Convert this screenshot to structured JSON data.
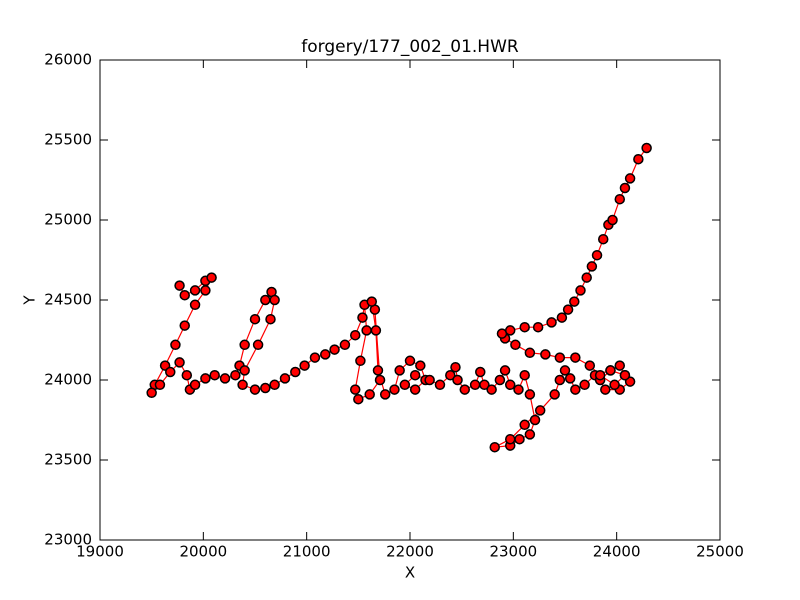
{
  "chart_data": {
    "type": "line",
    "title": "forgery/177_002_01.HWR",
    "x_label": "X",
    "y_label": "Y",
    "xlim": [
      19000,
      25000
    ],
    "xticks": [
      19000,
      20000,
      21000,
      22000,
      23000,
      24000,
      25000
    ],
    "ylim": [
      23000,
      26000
    ],
    "yticks": [
      23000,
      23500,
      24000,
      24500,
      25000,
      25500,
      26000
    ],
    "marker_edge_color": "black",
    "x": [
      19770,
      19820,
      19920,
      20020,
      20080,
      20020,
      19920,
      19820,
      19730,
      19630,
      19530,
      19500,
      19580,
      19680,
      19770,
      19840,
      19870,
      19920,
      20020,
      20110,
      20210,
      20310,
      20350,
      20400,
      20500,
      20600,
      20660,
      20690,
      20650,
      20530,
      20400,
      20380,
      20500,
      20600,
      20690,
      20790,
      20890,
      20980,
      21080,
      21180,
      21270,
      21370,
      21470,
      21540,
      21560,
      21580,
      21520,
      21470,
      21500,
      21610,
      21710,
      21660,
      21630,
      21670,
      21690,
      21760,
      21850,
      21900,
      22000,
      22100,
      22150,
      22050,
      21950,
      22050,
      22190,
      22290,
      22390,
      22440,
      22460,
      22530,
      22630,
      22680,
      22720,
      22790,
      22870,
      22920,
      22970,
      23050,
      23110,
      23160,
      23210,
      23160,
      23060,
      22970,
      22820,
      22970,
      23110,
      23260,
      23400,
      23450,
      23500,
      23550,
      23600,
      23690,
      23790,
      23940,
      24080,
      24130,
      24030,
      23890,
      23840,
      23940,
      24030,
      24080,
      23980,
      23840,
      23740,
      23600,
      23450,
      23310,
      23160,
      23020,
      22920,
      22890,
      22970,
      23110,
      23240,
      23370,
      23470,
      23530,
      23590,
      23650,
      23710,
      23760,
      23810,
      23870,
      23920,
      23960,
      24030,
      24080,
      24130,
      24210,
      24290
    ],
    "series": [
      {
        "color": "red",
        "values": [
          24590,
          24530,
          24560,
          24620,
          24640,
          24560,
          24470,
          24340,
          24220,
          24090,
          23970,
          23920,
          23970,
          24050,
          24110,
          24030,
          23940,
          23970,
          24010,
          24030,
          24010,
          24030,
          24090,
          24220,
          24380,
          24500,
          24550,
          24500,
          24380,
          24220,
          24060,
          23970,
          23940,
          23950,
          23970,
          24010,
          24050,
          24090,
          24140,
          24160,
          24190,
          24220,
          24280,
          24390,
          24470,
          24310,
          24120,
          23940,
          23880,
          23910,
          24000,
          24440,
          24490,
          24310,
          24060,
          23910,
          23940,
          24060,
          24120,
          24090,
          24000,
          23940,
          23970,
          24030,
          24000,
          23970,
          24030,
          24080,
          24000,
          23940,
          23970,
          24050,
          23970,
          23940,
          24000,
          24060,
          23970,
          23940,
          24030,
          23910,
          23750,
          23660,
          23630,
          23590,
          23580,
          23630,
          23720,
          23810,
          23910,
          24000,
          24060,
          24010,
          23940,
          23970,
          24030,
          24060,
          24030,
          23990,
          23940,
          23940,
          24000,
          24060,
          24090,
          24030,
          23970,
          24030,
          24090,
          24140,
          24140,
          24160,
          24170,
          24220,
          24260,
          24290,
          24310,
          24330,
          24330,
          24360,
          24390,
          24440,
          24490,
          24560,
          24640,
          24710,
          24780,
          24880,
          24970,
          25000,
          25130,
          25200,
          25260,
          25380,
          25450
        ]
      }
    ]
  }
}
